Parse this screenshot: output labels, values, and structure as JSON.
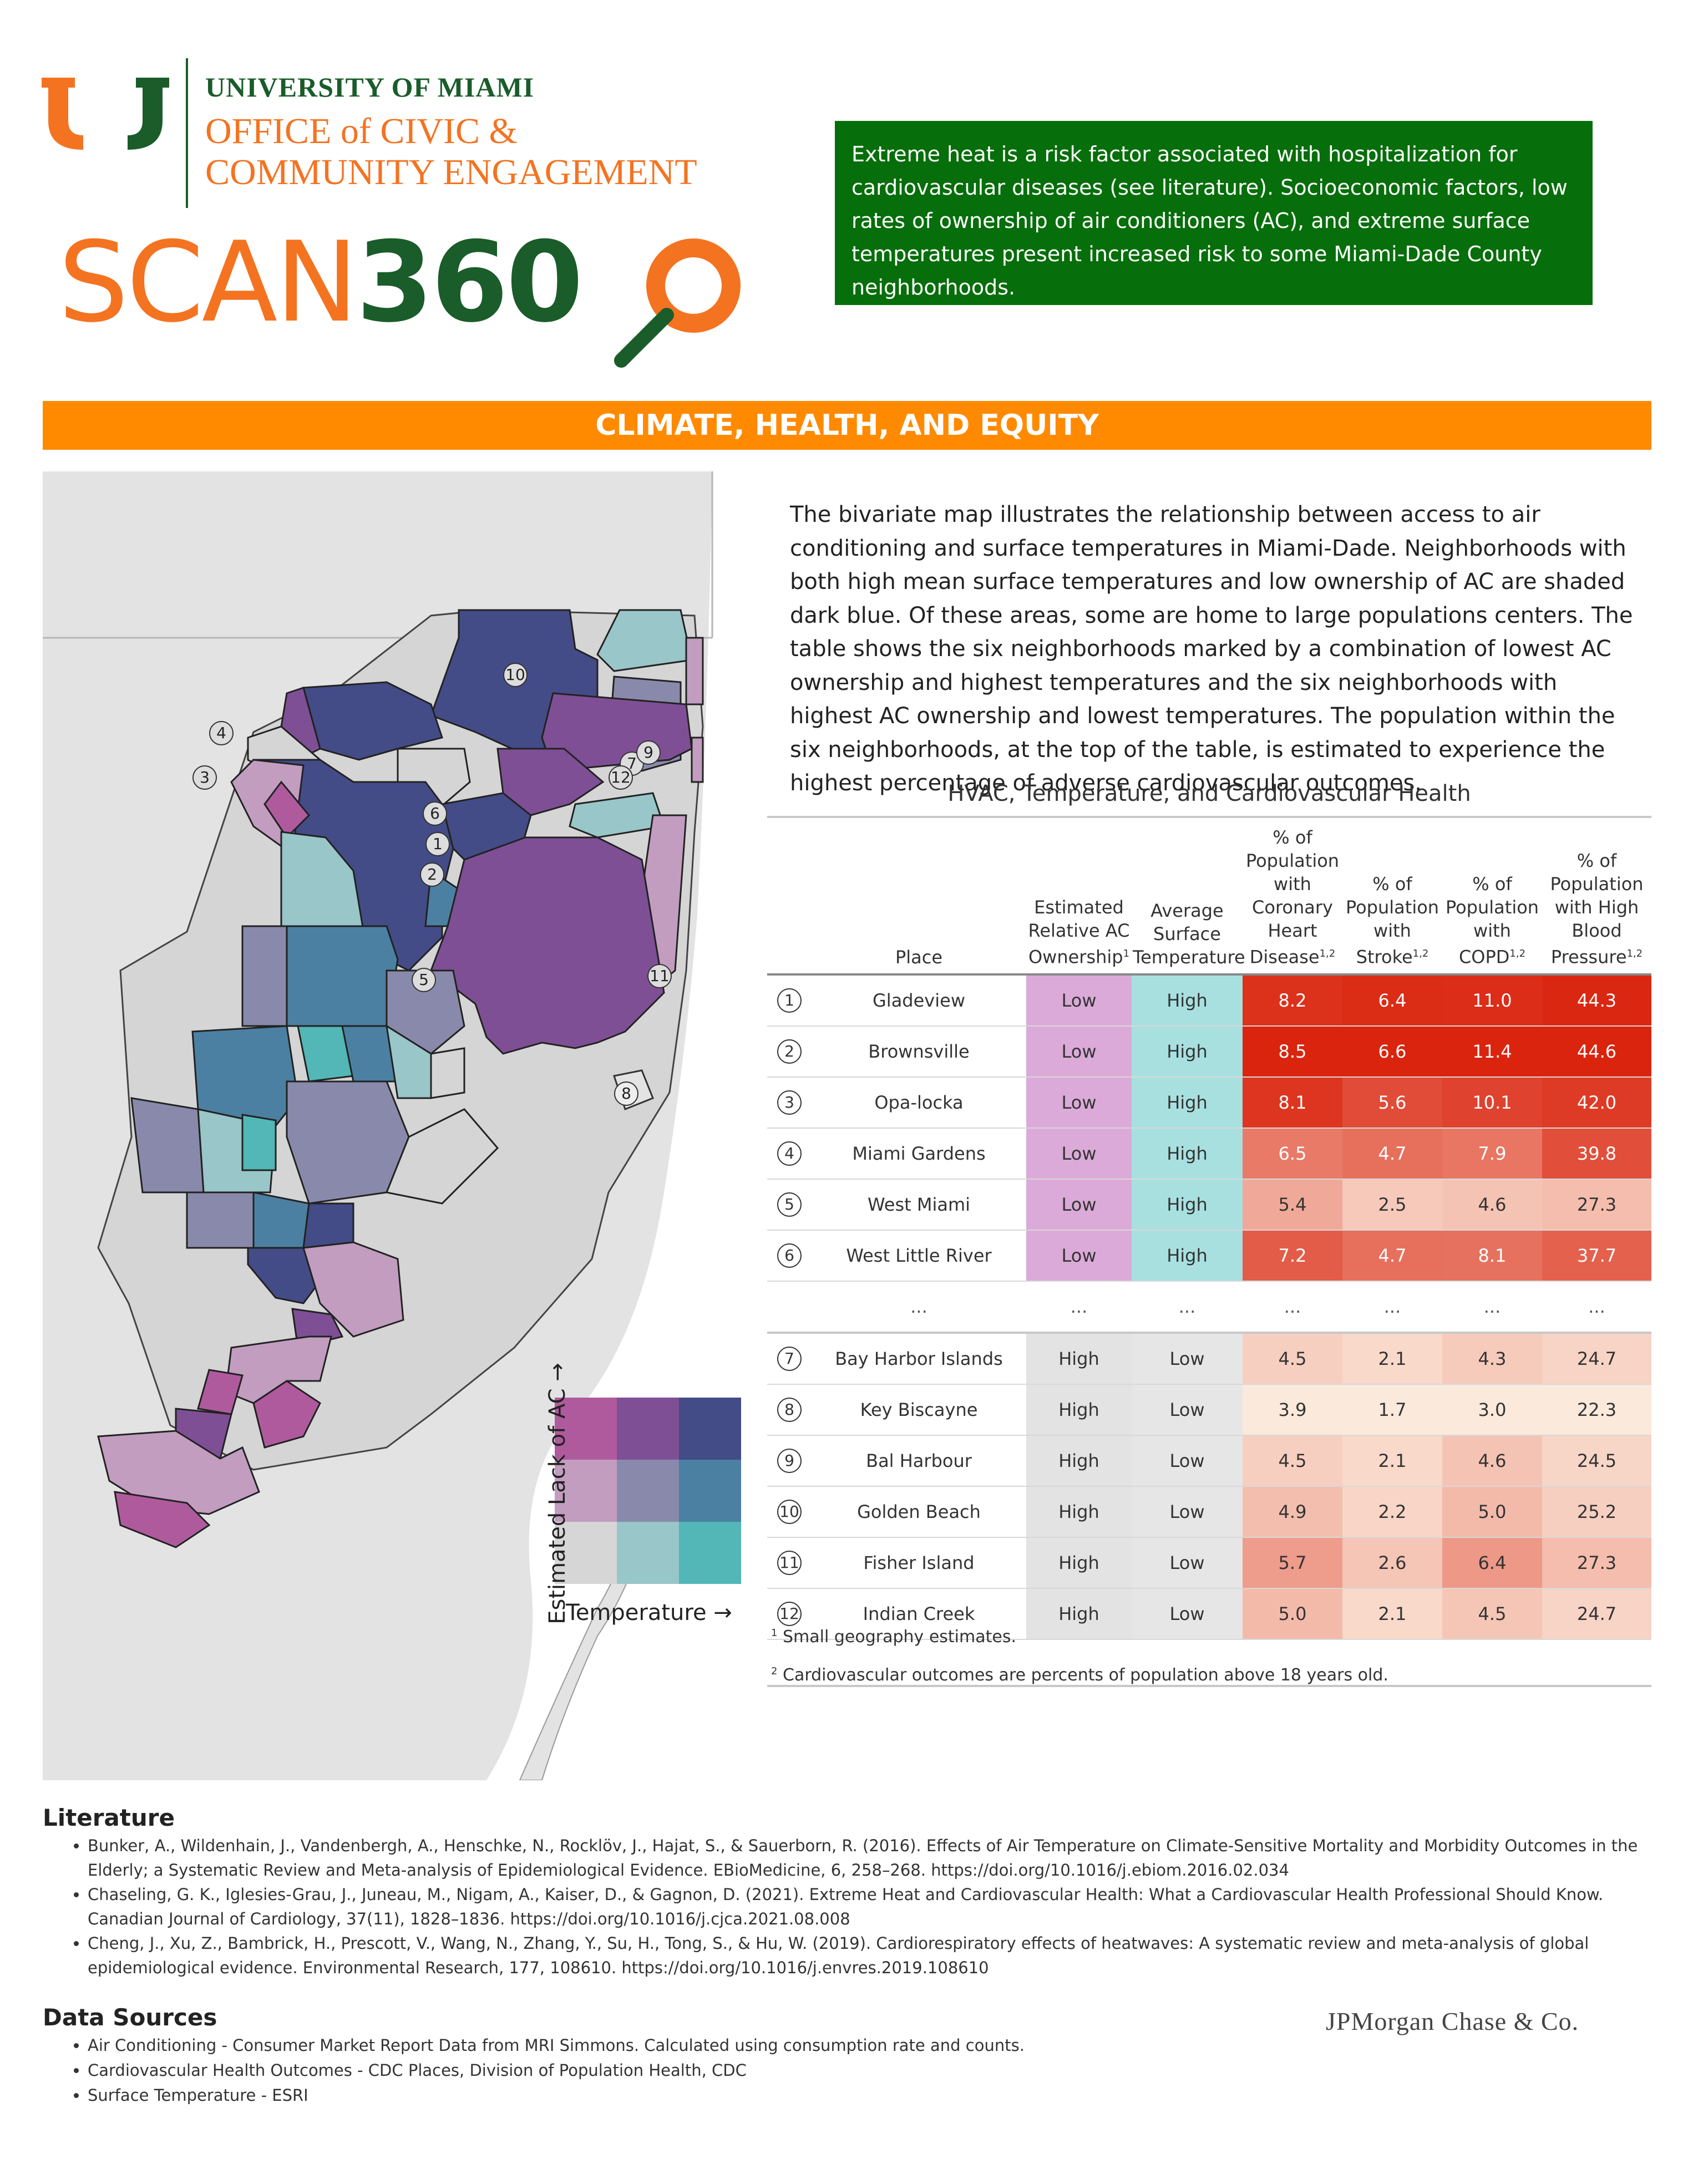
{
  "header": {
    "university": "UNIVERSITY OF MIAMI",
    "office_line1": "OFFICE of CIVIC &",
    "office_line2": "COMMUNITY ENGAGEMENT",
    "scan_left": "SCAN",
    "scan_right": "360",
    "intro": "Extreme heat is a risk factor associated with hospitalization for cardiovascular diseases (see literature). Socioeconomic factors, low rates of ownership of air conditioners (AC), and extreme surface temperatures present increased risk to some Miami-Dade County neighborhoods.",
    "colors": {
      "orange": "#f47321",
      "green": "#1a5c2a",
      "intro_bg": "#066e0a",
      "bar": "#ff8a00"
    }
  },
  "section_title": "CLIMATE, HEALTH, AND EQUITY",
  "map": {
    "markers": [
      "1",
      "2",
      "3",
      "4",
      "5",
      "6",
      "7",
      "8",
      "9",
      "10",
      "11",
      "12"
    ],
    "legend": {
      "y_label": "Estimated Lack of AC →",
      "x_label": "Temperature →",
      "grid_colors": [
        [
          "#b05a9e",
          "#7f4f96",
          "#434c87"
        ],
        [
          "#c29dc0",
          "#898aab",
          "#4b80a2"
        ],
        [
          "#d6d6d6",
          "#99c6c8",
          "#52b7b6"
        ]
      ]
    }
  },
  "description": "The bivariate map illustrates the relationship between access to air conditioning and surface temperatures in Miami-Dade. Neighborhoods with both high mean surface temperatures and low ownership of AC are shaded dark blue. Of these areas, some are home to large populations centers. The table shows the six neighborhoods marked by a combination of lowest AC ownership and highest temperatures and the six neighborhoods with highest AC ownership and lowest temperatures. The population within the six neighborhoods, at the top of the table, is estimated to experience the highest percentage of adverse cardiovascular outcomes.",
  "table": {
    "title": "HVAC, Temperature, and Cardiovascular Health",
    "headers": {
      "place": "Place",
      "ac": "Estimated Relative AC Ownership",
      "temp": "Average Surface Temperature",
      "chd": "% of Population with Coronary Heart Disease",
      "stroke": "% of Population with Stroke",
      "copd": "% of Population with COPD",
      "bp": "% of Population with High Blood Pressure"
    },
    "rows_top": [
      {
        "n": "1",
        "place": "Gladeview",
        "ac": "Low",
        "temp": "High",
        "chd": "8.2",
        "stroke": "6.4",
        "copd": "11.0",
        "bp": "44.3"
      },
      {
        "n": "2",
        "place": "Brownsville",
        "ac": "Low",
        "temp": "High",
        "chd": "8.5",
        "stroke": "6.6",
        "copd": "11.4",
        "bp": "44.6"
      },
      {
        "n": "3",
        "place": "Opa-locka",
        "ac": "Low",
        "temp": "High",
        "chd": "8.1",
        "stroke": "5.6",
        "copd": "10.1",
        "bp": "42.0"
      },
      {
        "n": "4",
        "place": "Miami Gardens",
        "ac": "Low",
        "temp": "High",
        "chd": "6.5",
        "stroke": "4.7",
        "copd": "7.9",
        "bp": "39.8"
      },
      {
        "n": "5",
        "place": "West Miami",
        "ac": "Low",
        "temp": "High",
        "chd": "5.4",
        "stroke": "2.5",
        "copd": "4.6",
        "bp": "27.3"
      },
      {
        "n": "6",
        "place": "West Little River",
        "ac": "Low",
        "temp": "High",
        "chd": "7.2",
        "stroke": "4.7",
        "copd": "8.1",
        "bp": "37.7"
      }
    ],
    "ellipsis": "...",
    "rows_bottom": [
      {
        "n": "7",
        "place": "Bay Harbor Islands",
        "ac": "High",
        "temp": "Low",
        "chd": "4.5",
        "stroke": "2.1",
        "copd": "4.3",
        "bp": "24.7"
      },
      {
        "n": "8",
        "place": "Key Biscayne",
        "ac": "High",
        "temp": "Low",
        "chd": "3.9",
        "stroke": "1.7",
        "copd": "3.0",
        "bp": "22.3"
      },
      {
        "n": "9",
        "place": "Bal Harbour",
        "ac": "High",
        "temp": "Low",
        "chd": "4.5",
        "stroke": "2.1",
        "copd": "4.6",
        "bp": "24.5"
      },
      {
        "n": "10",
        "place": "Golden Beach",
        "ac": "High",
        "temp": "Low",
        "chd": "4.9",
        "stroke": "2.2",
        "copd": "5.0",
        "bp": "25.2"
      },
      {
        "n": "11",
        "place": "Fisher Island",
        "ac": "High",
        "temp": "Low",
        "chd": "5.7",
        "stroke": "2.6",
        "copd": "6.4",
        "bp": "27.3"
      },
      {
        "n": "12",
        "place": "Indian Creek",
        "ac": "High",
        "temp": "Low",
        "chd": "5.0",
        "stroke": "2.1",
        "copd": "4.5",
        "bp": "24.7"
      }
    ],
    "footnote1": "Small geography estimates.",
    "footnote2": "Cardiovascular outcomes are percents of population above 18 years old."
  },
  "literature": {
    "title": "Literature",
    "items": [
      "Bunker, A., Wildenhain, J., Vandenbergh, A., Henschke, N., Rocklöv, J., Hajat, S., & Sauerborn, R. (2016). Effects of Air Temperature on Climate-Sensitive Mortality and Morbidity Outcomes in the Elderly; a Systematic Review and Meta-analysis of Epidemiological Evidence. EBioMedicine, 6, 258–268. https://doi.org/10.1016/j.ebiom.2016.02.034",
      "Chaseling, G. K., Iglesies-Grau, J., Juneau, M., Nigam, A., Kaiser, D., & Gagnon, D. (2021). Extreme Heat and Cardiovascular Health: What a Cardiovascular Health Professional Should Know. Canadian Journal of Cardiology, 37(11), 1828–1836. https://doi.org/10.1016/j.cjca.2021.08.008",
      "Cheng, J., Xu, Z., Bambrick, H., Prescott, V., Wang, N., Zhang, Y., Su, H., Tong, S., & Hu, W. (2019). Cardiorespiratory effects of heatwaves: A systematic review and meta-analysis of global epidemiological evidence. Environmental Research, 177, 108610. https://doi.org/10.1016/j.envres.2019.108610"
    ]
  },
  "data_sources": {
    "title": "Data Sources",
    "items": [
      "Air Conditioning - Consumer Market Report Data from MRI Simmons. Calculated using consumption rate and counts.",
      "Cardiovascular Health Outcomes - CDC Places, Division of Population Health, CDC",
      "Surface Temperature - ESRI"
    ]
  },
  "sponsor": "JPMorgan Chase & Co."
}
